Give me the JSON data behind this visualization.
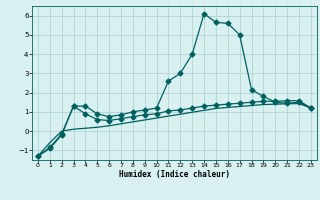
{
  "title": "",
  "xlabel": "Humidex (Indice chaleur)",
  "bg_color": "#d8f0f0",
  "grid_color": "#b8d8d8",
  "line_color": "#006060",
  "xlim": [
    -0.5,
    23.5
  ],
  "ylim": [
    -1.5,
    6.5
  ],
  "xticks": [
    0,
    1,
    2,
    3,
    4,
    5,
    6,
    7,
    8,
    9,
    10,
    11,
    12,
    13,
    14,
    15,
    16,
    17,
    18,
    19,
    20,
    21,
    22,
    23
  ],
  "yticks": [
    -1,
    0,
    1,
    2,
    3,
    4,
    5,
    6
  ],
  "series1_x": [
    0,
    1,
    2,
    3,
    4,
    5,
    6,
    7,
    8,
    9,
    10,
    11,
    12,
    13,
    14,
    15,
    16,
    17,
    18,
    19,
    20,
    21,
    22,
    23
  ],
  "series1_y": [
    -1.3,
    -0.9,
    -0.2,
    1.3,
    1.3,
    0.9,
    0.75,
    0.85,
    1.0,
    1.1,
    1.2,
    2.6,
    3.0,
    4.0,
    6.1,
    5.65,
    5.6,
    5.0,
    2.15,
    1.8,
    1.5,
    1.45,
    1.5,
    1.2
  ],
  "series2_x": [
    0,
    1,
    2,
    3,
    4,
    5,
    6,
    7,
    8,
    9,
    10,
    11,
    12,
    13,
    14,
    15,
    16,
    17,
    18,
    19,
    20,
    21,
    22,
    23
  ],
  "series2_y": [
    -1.3,
    -0.85,
    -0.15,
    1.3,
    0.9,
    0.6,
    0.55,
    0.65,
    0.75,
    0.85,
    0.9,
    1.05,
    1.1,
    1.2,
    1.3,
    1.35,
    1.4,
    1.45,
    1.5,
    1.55,
    1.55,
    1.58,
    1.58,
    1.2
  ],
  "series3_x": [
    0,
    1,
    2,
    3,
    4,
    5,
    6,
    7,
    8,
    9,
    10,
    11,
    12,
    13,
    14,
    15,
    16,
    17,
    18,
    19,
    20,
    21,
    22,
    23
  ],
  "series3_y": [
    -1.3,
    -0.6,
    0.0,
    0.1,
    0.15,
    0.2,
    0.28,
    0.38,
    0.48,
    0.58,
    0.68,
    0.78,
    0.88,
    0.98,
    1.08,
    1.18,
    1.23,
    1.28,
    1.33,
    1.38,
    1.4,
    1.42,
    1.43,
    1.2
  ]
}
